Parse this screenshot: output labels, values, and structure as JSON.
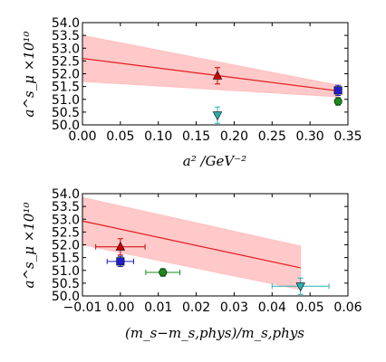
{
  "chart_data": [
    {
      "type": "scatter",
      "title": "",
      "xlabel": "a² /GeV⁻²",
      "ylabel": "a^s_μ ×10¹⁰",
      "xlim": [
        0.0,
        0.35
      ],
      "ylim": [
        50.0,
        54.0
      ],
      "xticks": [
        0.0,
        0.05,
        0.1,
        0.15,
        0.2,
        0.25,
        0.3,
        0.35
      ],
      "xtick_labels": [
        "0.00",
        "0.05",
        "0.10",
        "0.15",
        "0.20",
        "0.25",
        "0.30",
        "0.35"
      ],
      "yticks": [
        50.0,
        50.5,
        51.0,
        51.5,
        52.0,
        52.5,
        53.0,
        53.5,
        54.0
      ],
      "ytick_labels": [
        "50.0",
        "50.5",
        "51.0",
        "51.5",
        "52.0",
        "52.5",
        "53.0",
        "53.5",
        "54.0"
      ],
      "fit": {
        "x": [
          0.0,
          0.337
        ],
        "y": [
          52.6,
          51.33
        ],
        "band_upper": [
          53.5,
          51.55
        ],
        "band_lower": [
          51.7,
          51.1
        ],
        "color": "#e41a1c",
        "band_color": "#ffc0c0"
      },
      "points": [
        {
          "marker": "triangle-up",
          "color": "#cc0000",
          "x": 0.178,
          "y": 51.92,
          "yerr": 0.32
        },
        {
          "marker": "triangle-down",
          "color": "#2ab0b0",
          "x": 0.178,
          "y": 50.38,
          "yerr": 0.32
        },
        {
          "marker": "square",
          "color": "#1f1fcc",
          "x": 0.337,
          "y": 51.35,
          "yerr": 0.2
        },
        {
          "marker": "circle",
          "color": "#1a8a1a",
          "x": 0.337,
          "y": 50.92,
          "yerr": 0.15
        }
      ]
    },
    {
      "type": "scatter",
      "title": "",
      "xlabel": "(m_s−m_s,phys)/m_s,phys",
      "ylabel": "a^s_μ ×10¹⁰",
      "xlim": [
        -0.01,
        0.06
      ],
      "ylim": [
        50.0,
        54.0
      ],
      "xticks": [
        -0.01,
        0.0,
        0.01,
        0.02,
        0.03,
        0.04,
        0.05,
        0.06
      ],
      "xtick_labels": [
        "−0.01",
        "0.00",
        "0.01",
        "0.02",
        "0.03",
        "0.04",
        "0.05",
        "0.06"
      ],
      "yticks": [
        50.0,
        50.5,
        51.0,
        51.5,
        52.0,
        52.5,
        53.0,
        53.5,
        54.0
      ],
      "ytick_labels": [
        "50.0",
        "50.5",
        "51.0",
        "51.5",
        "52.0",
        "52.5",
        "53.0",
        "53.5",
        "54.0"
      ],
      "fit": {
        "x": [
          -0.01,
          0.0475
        ],
        "y": [
          52.93,
          51.1
        ],
        "band_upper": [
          53.85,
          51.95
        ],
        "band_lower": [
          52.0,
          50.25
        ],
        "color": "#e41a1c",
        "band_color": "#ffc0c0"
      },
      "points": [
        {
          "marker": "triangle-up",
          "color": "#cc0000",
          "x": 0.0,
          "y": 51.92,
          "yerr": 0.32,
          "xerr": 0.0065
        },
        {
          "marker": "square",
          "color": "#1f1fcc",
          "x": 0.0,
          "y": 51.35,
          "yerr": 0.2,
          "xerr": 0.0035
        },
        {
          "marker": "circle",
          "color": "#1a8a1a",
          "x": 0.0112,
          "y": 50.92,
          "yerr": 0.15,
          "xerr": 0.0045
        },
        {
          "marker": "triangle-down",
          "color": "#2ab0b0",
          "x": 0.0475,
          "y": 50.38,
          "yerr": 0.32,
          "xerr": 0.0075
        }
      ]
    }
  ]
}
